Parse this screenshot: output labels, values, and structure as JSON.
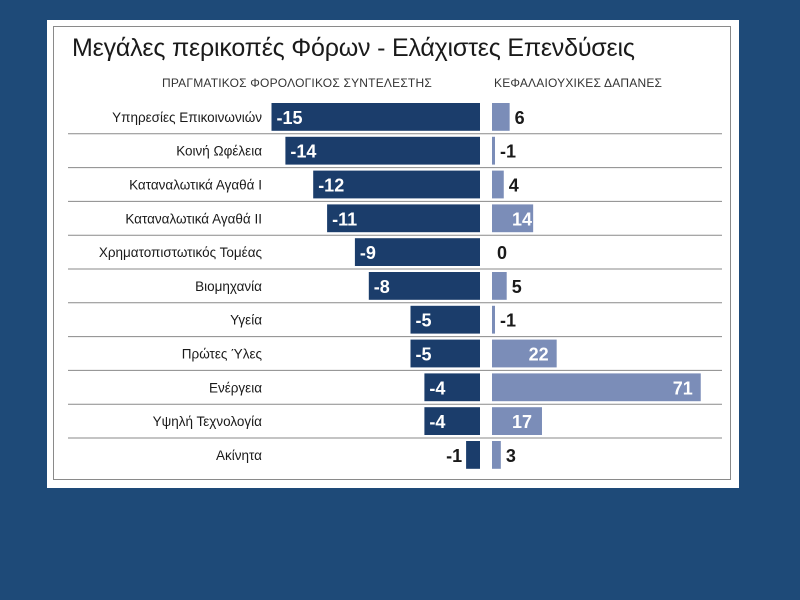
{
  "title": "Μεγάλες περικοπές Φόρων - Ελάχιστες Επενδύσεις",
  "colors": {
    "background": "#1e4a78",
    "left_bar": "#1b3d6b",
    "right_bar": "#7b8db8",
    "divider": "#8a8a8a"
  },
  "chart_data": {
    "type": "bar",
    "title": "Μεγάλες περικοπές Φόρων - Ελάχιστες Επενδύσεις",
    "categories": [
      "Υπηρεσίες Επικοινωνιών",
      "Κοινή Ωφέλεια",
      "Καταναλωτικά Αγαθά Ι",
      "Καταναλωτικά Αγαθά ΙΙ",
      "Χρηματοπιστωτικός Τομέας",
      "Βιομηχανία",
      "Υγεία",
      "Πρώτες Ύλες",
      "Ενέργεια",
      "Υψηλή Τεχνολογία",
      "Ακίνητα"
    ],
    "series": [
      {
        "name": "ΠΡΑΓΜΑΤΙΚΟΣ ΦΟΡΟΛΟΓΙΚΟΣ ΣΥΝΤΕΛΕΣΤΗΣ",
        "values": [
          -15,
          -14,
          -12,
          -11,
          -9,
          -8,
          -5,
          -5,
          -4,
          -4,
          -1
        ],
        "labels": [
          "-15",
          "-14",
          "-12",
          "-11",
          "-9",
          "-8",
          "-5",
          "-5",
          "-4",
          "-4",
          "-1"
        ]
      },
      {
        "name": "ΚΕΦΑΛΑΙΟΥΧΙΚΕΣ ΔΑΠΑΝΕΣ",
        "values": [
          6,
          -1,
          4,
          14,
          0,
          5,
          -1,
          22,
          71,
          17,
          3
        ],
        "labels": [
          "6",
          "-1",
          "4",
          "14",
          "0",
          "5",
          "-1",
          "22",
          "71",
          "17",
          "3"
        ]
      }
    ],
    "grid": false,
    "legend": "column headers above bars"
  }
}
